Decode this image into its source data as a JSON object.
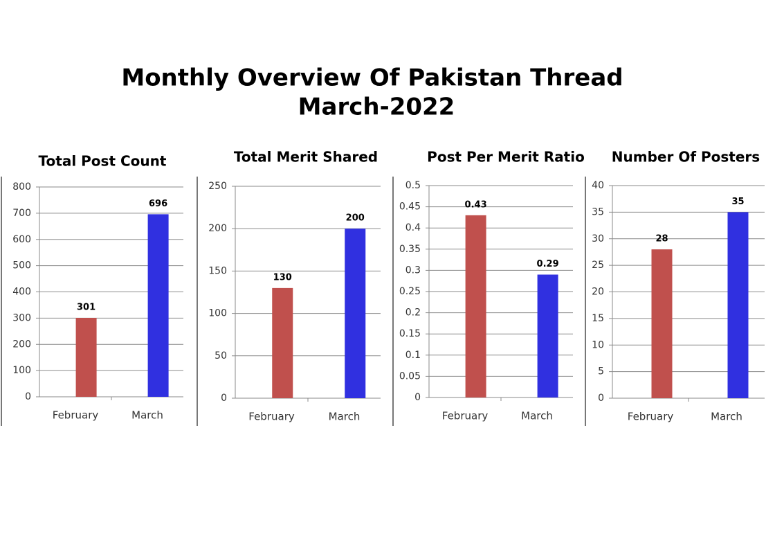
{
  "title": "Monthly Overview Of Pakistan Thread",
  "subtitle": "March-2022",
  "chart_data": [
    {
      "type": "bar",
      "title": "Total Post Count",
      "categories": [
        "February",
        "March"
      ],
      "values": [
        301,
        696
      ],
      "colors": [
        "#c0504d",
        "#3030e0"
      ],
      "ylim": [
        0,
        800
      ],
      "yticks": [
        0,
        100,
        200,
        300,
        400,
        500,
        600,
        700,
        800
      ],
      "grid": true
    },
    {
      "type": "bar",
      "title": "Total Merit Shared",
      "categories": [
        "February",
        "March"
      ],
      "values": [
        130,
        200
      ],
      "colors": [
        "#c0504d",
        "#3030e0"
      ],
      "ylim": [
        0,
        250
      ],
      "yticks": [
        0,
        50,
        100,
        150,
        200,
        250
      ],
      "grid": true
    },
    {
      "type": "bar",
      "title": "Post Per Merit Ratio",
      "categories": [
        "February",
        "March"
      ],
      "values": [
        0.43,
        0.29
      ],
      "colors": [
        "#c0504d",
        "#3030e0"
      ],
      "ylim": [
        0,
        0.5
      ],
      "yticks": [
        0,
        0.05,
        0.1,
        0.15,
        0.2,
        0.25,
        0.3,
        0.35,
        0.4,
        0.45,
        0.5
      ],
      "grid": true
    },
    {
      "type": "bar",
      "title": "Number Of Posters",
      "categories": [
        "February",
        "March"
      ],
      "values": [
        28,
        35
      ],
      "colors": [
        "#c0504d",
        "#3030e0"
      ],
      "ylim": [
        0,
        40
      ],
      "yticks": [
        0,
        5,
        10,
        15,
        20,
        25,
        30,
        35,
        40
      ],
      "grid": true
    }
  ]
}
